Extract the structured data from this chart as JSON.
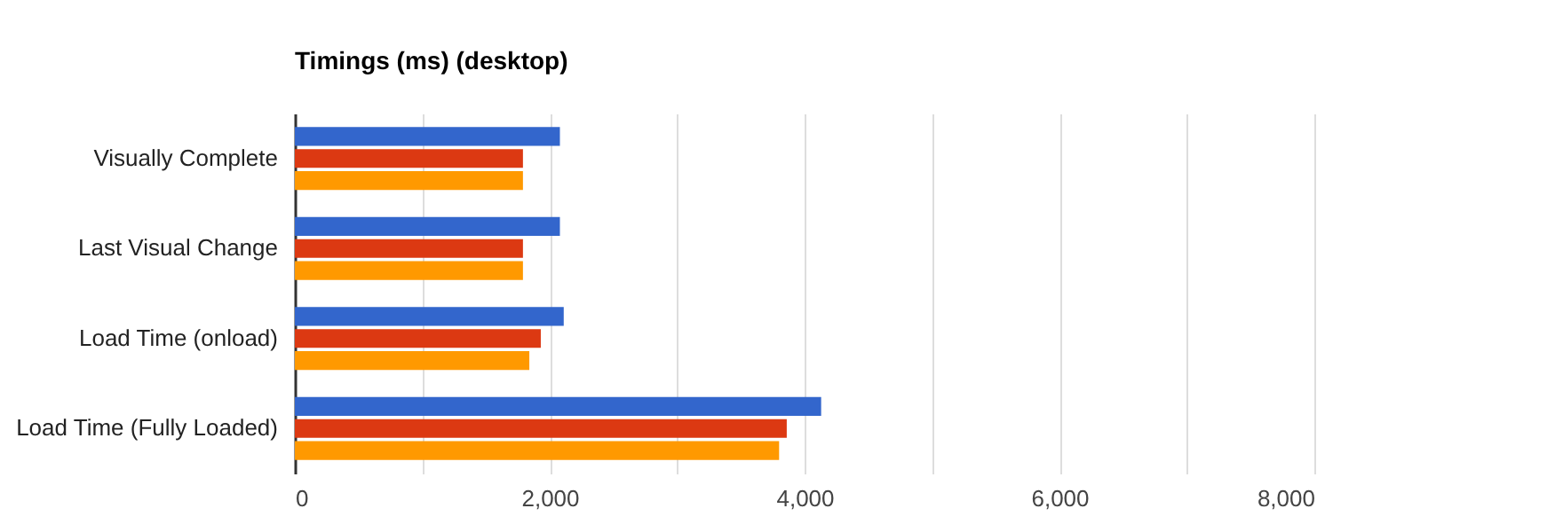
{
  "chart_data": {
    "type": "bar",
    "orientation": "horizontal",
    "title": "Timings (ms) (desktop)",
    "categories": [
      "Visually Complete",
      "Last Visual Change",
      "Load Time (onload)",
      "Load Time (Fully Loaded)"
    ],
    "series": [
      {
        "color": "#3366cc",
        "values": [
          2080,
          2080,
          2110,
          4130
        ]
      },
      {
        "color": "#dc3912",
        "values": [
          1790,
          1790,
          1930,
          3860
        ]
      },
      {
        "color": "#ff9900",
        "values": [
          1790,
          1790,
          1840,
          3800
        ]
      }
    ],
    "xlim": [
      0,
      8000
    ],
    "xticks": [
      0,
      {
        "value": 1000,
        "label": null
      },
      {
        "value": 2000,
        "label": "2,000"
      },
      {
        "value": 3000,
        "label": null
      },
      {
        "value": 4000,
        "label": "4,000"
      },
      {
        "value": 5000,
        "label": null
      },
      {
        "value": 6000,
        "label": "6,000"
      },
      {
        "value": 7000,
        "label": null
      },
      {
        "value": 8000,
        "label": "8,000"
      }
    ],
    "grid": true,
    "legend": false
  }
}
